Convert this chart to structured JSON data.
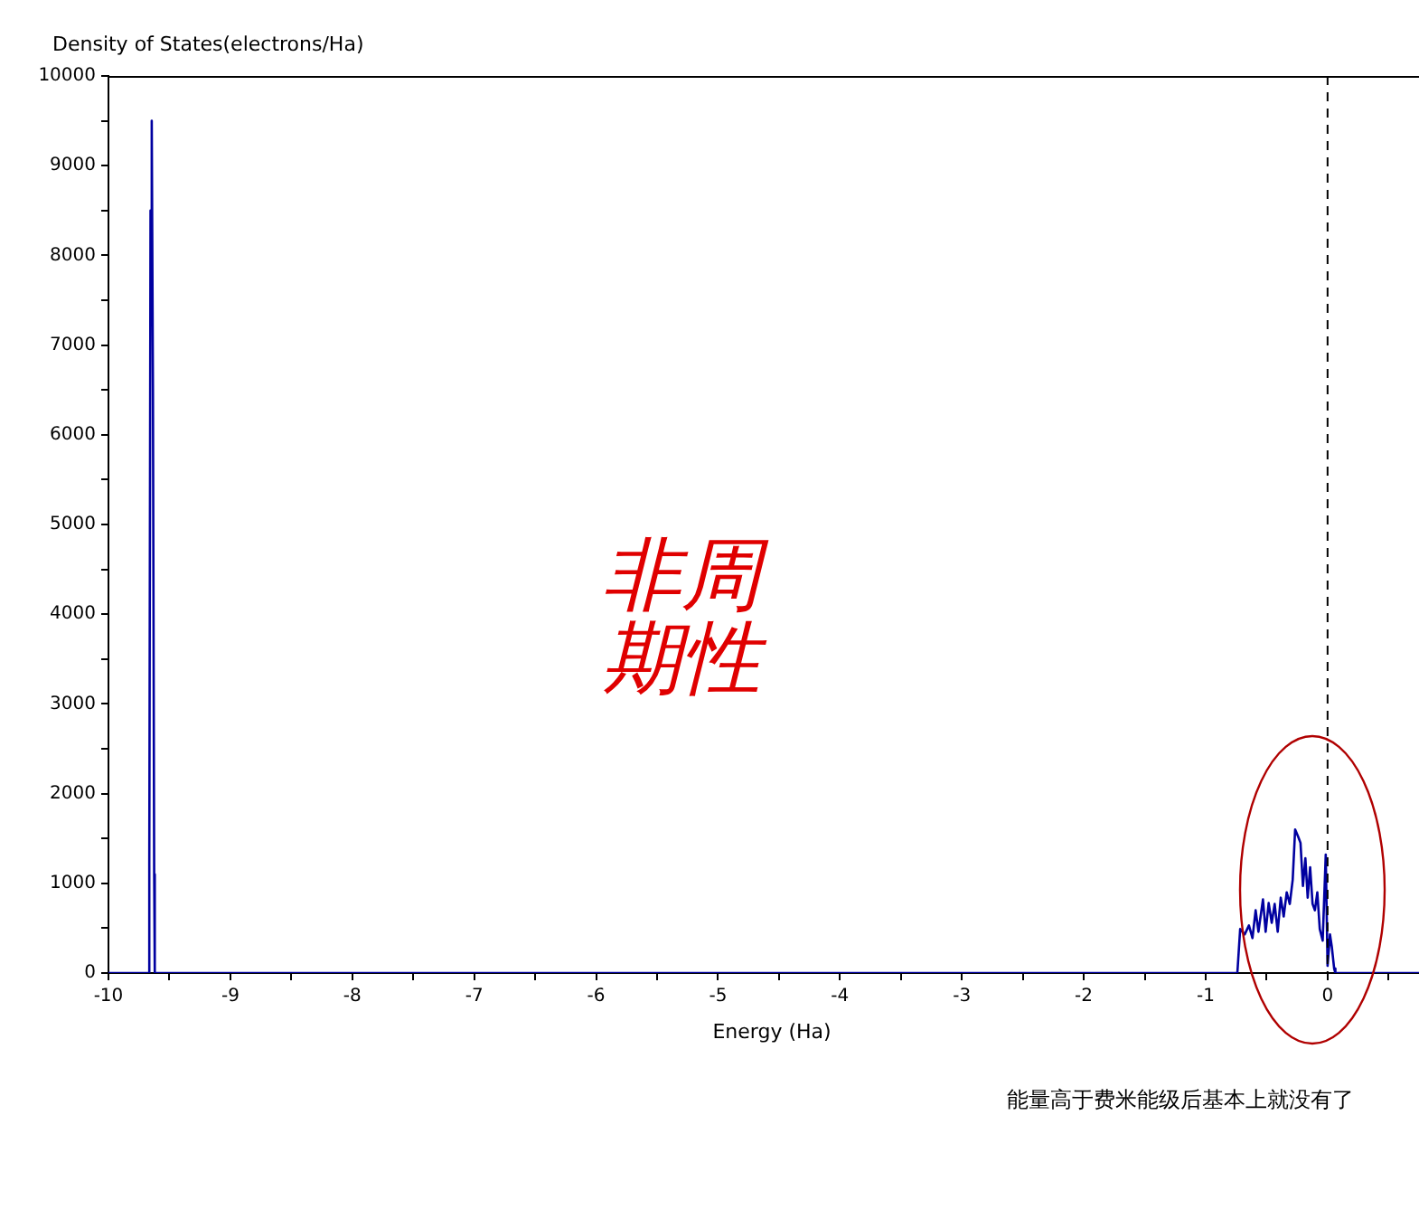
{
  "chart_data": {
    "type": "line",
    "xlabel": "Energy (Ha)",
    "ylabel": "Density of States(electrons/Ha)",
    "annotations": [
      "非周期性",
      "能量高于费米能级后基本上就没有了"
    ],
    "series": [
      {
        "color": "#0000a0",
        "x": [
          -10,
          -9.67,
          -9.665,
          -9.655,
          -9.645,
          -9.635,
          -9.625,
          -9.62,
          -0.74,
          -0.717,
          -0.68,
          -0.645,
          -0.616,
          -0.59,
          -0.567,
          -0.53,
          -0.508,
          -0.483,
          -0.458,
          -0.434,
          -0.409,
          -0.384,
          -0.36,
          -0.335,
          -0.31,
          -0.286,
          -0.266,
          -0.241,
          -0.222,
          -0.202,
          -0.182,
          -0.163,
          -0.143,
          -0.123,
          -0.104,
          -0.084,
          -0.064,
          -0.04,
          -0.015,
          0,
          0.02,
          0.035,
          0.054,
          0.064,
          0.75
        ],
        "values": [
          0,
          0,
          1200,
          8500,
          9500,
          6500,
          1100,
          0,
          0,
          490,
          430,
          530,
          390,
          700,
          460,
          820,
          460,
          780,
          560,
          770,
          460,
          840,
          630,
          900,
          770,
          1040,
          1600,
          1520,
          1450,
          970,
          1280,
          840,
          1180,
          770,
          700,
          900,
          490,
          360,
          1320,
          80,
          430,
          290,
          50,
          0,
          0
        ]
      }
    ],
    "xlim": [
      -10,
      0.75
    ],
    "xticks": [
      -10,
      {
        "value": -9.5,
        "label": null
      },
      -9,
      {
        "value": -8.5,
        "label": null
      },
      -8,
      {
        "value": -7.5,
        "label": null
      },
      -7,
      {
        "value": -6.5,
        "label": null
      },
      -6,
      {
        "value": -5.5,
        "label": null
      },
      -5,
      {
        "value": -4.5,
        "label": null
      },
      -4,
      {
        "value": -3.5,
        "label": null
      },
      -3,
      {
        "value": -2.5,
        "label": null
      },
      -2,
      {
        "value": -1.5,
        "label": null
      },
      -1,
      {
        "value": -0.5,
        "label": null
      },
      0,
      {
        "value": 0.5,
        "label": null
      }
    ],
    "ylim": [
      0,
      10000
    ],
    "yticks": [
      0,
      {
        "value": 500,
        "label": null
      },
      1000,
      {
        "value": 1500,
        "label": null
      },
      2000,
      {
        "value": 2500,
        "label": null
      },
      3000,
      {
        "value": 3500,
        "label": null
      },
      4000,
      {
        "value": 4500,
        "label": null
      },
      5000,
      {
        "value": 5500,
        "label": null
      },
      6000,
      {
        "value": 6500,
        "label": null
      },
      7000,
      {
        "value": 7500,
        "label": null
      },
      8000,
      {
        "value": 8500,
        "label": null
      },
      9000,
      {
        "value": 9500,
        "label": null
      },
      10000
    ],
    "ref_lines": [
      {
        "axis": "x",
        "value": 0,
        "color": "#000000",
        "line_style": "dashed"
      }
    ],
    "grid": false,
    "legend": false,
    "marker": "none",
    "line_style": "solid"
  }
}
